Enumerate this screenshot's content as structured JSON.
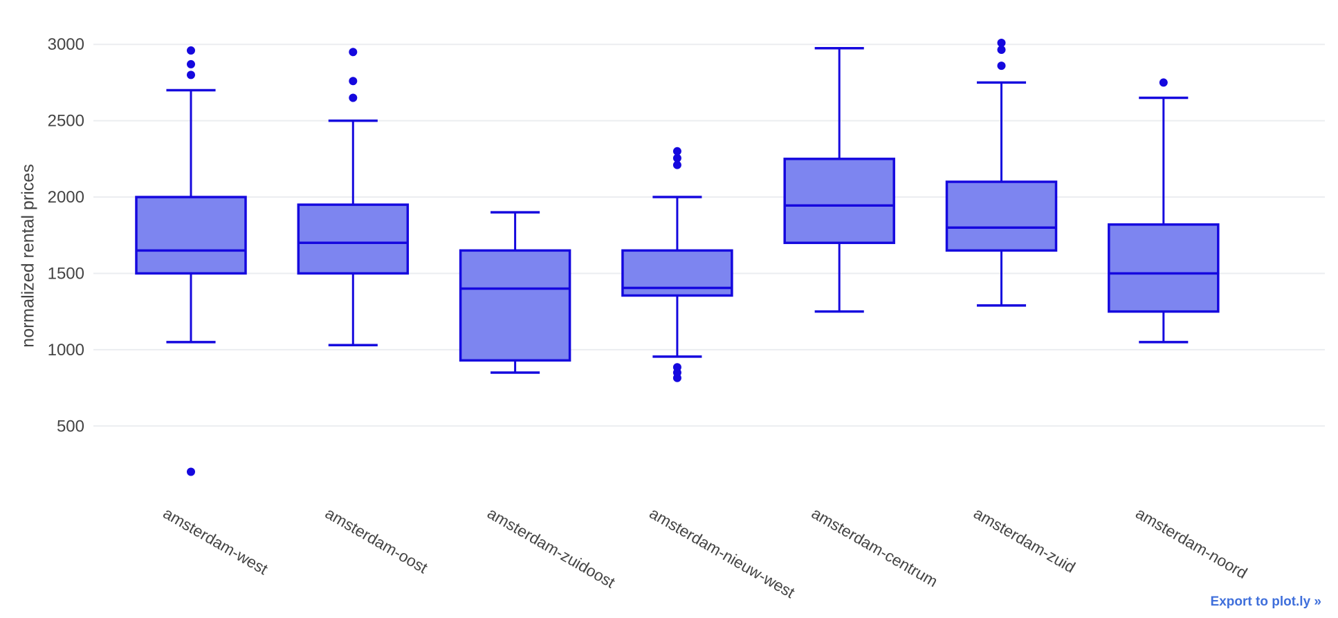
{
  "export": {
    "label": "Export to plot.ly »"
  },
  "colors": {
    "line": "#1508de",
    "fill": "#7d85f0",
    "grid": "#ebedf0",
    "text": "#444444",
    "export_link": "#3f6fdb",
    "background": "#ffffff"
  },
  "chart_data": {
    "type": "box",
    "title": "",
    "xlabel": "",
    "ylabel": "normalized rental prices",
    "yticks": [
      500,
      1000,
      1500,
      2000,
      2500,
      3000
    ],
    "ylim": [
      130,
      3155
    ],
    "grid": true,
    "legend": "none",
    "categories": [
      "amsterdam-west",
      "amsterdam-oost",
      "amsterdam-zuidoost",
      "amsterdam-nieuw-west",
      "amsterdam-centrum",
      "amsterdam-zuid",
      "amsterdam-noord"
    ],
    "boxes": [
      {
        "category": "amsterdam-west",
        "whisker_low": 1050,
        "q1": 1500,
        "median": 1650,
        "q3": 2000,
        "whisker_high": 2700,
        "outliers": [
          200,
          2800,
          2870,
          2960
        ]
      },
      {
        "category": "amsterdam-oost",
        "whisker_low": 1030,
        "q1": 1500,
        "median": 1700,
        "q3": 1950,
        "whisker_high": 2500,
        "outliers": [
          2650,
          2760,
          2950
        ]
      },
      {
        "category": "amsterdam-zuidoost",
        "whisker_low": 850,
        "q1": 930,
        "median": 1400,
        "q3": 1650,
        "whisker_high": 1900,
        "outliers": []
      },
      {
        "category": "amsterdam-nieuw-west",
        "whisker_low": 955,
        "q1": 1355,
        "median": 1405,
        "q3": 1650,
        "whisker_high": 2000,
        "outliers": [
          815,
          850,
          885,
          2210,
          2255,
          2300
        ]
      },
      {
        "category": "amsterdam-centrum",
        "whisker_low": 1250,
        "q1": 1700,
        "median": 1945,
        "q3": 2250,
        "whisker_high": 2975,
        "outliers": []
      },
      {
        "category": "amsterdam-zuid",
        "whisker_low": 1290,
        "q1": 1650,
        "median": 1800,
        "q3": 2100,
        "whisker_high": 2750,
        "outliers": [
          2860,
          2965,
          3010
        ]
      },
      {
        "category": "amsterdam-noord",
        "whisker_low": 1050,
        "q1": 1250,
        "median": 1500,
        "q3": 1820,
        "whisker_high": 2650,
        "outliers": [
          2750
        ]
      }
    ]
  }
}
